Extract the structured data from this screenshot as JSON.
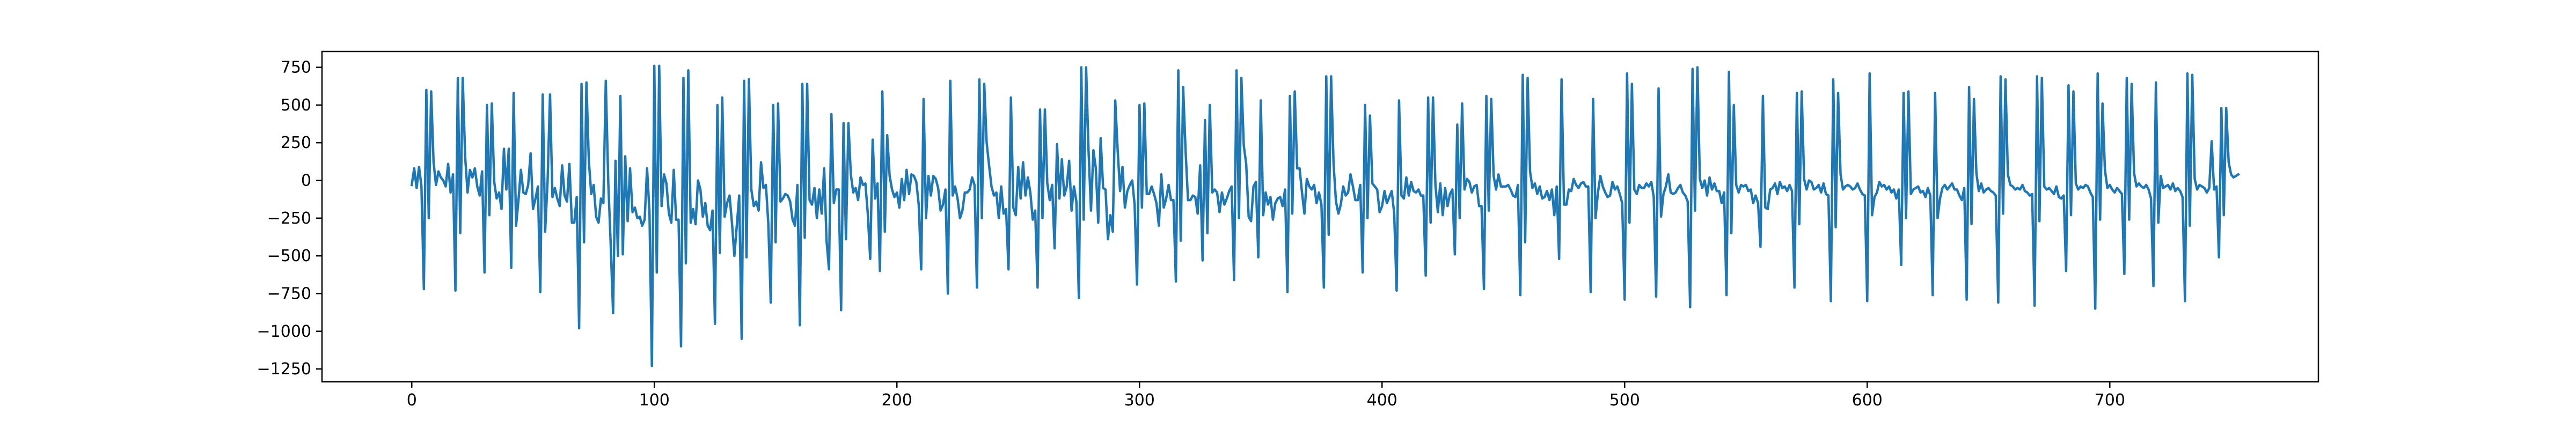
{
  "chart_data": {
    "type": "line",
    "title": "",
    "xlabel": "",
    "ylabel": "",
    "xlim": [
      -37,
      786
    ],
    "ylim": [
      -1335,
      855
    ],
    "x_ticks": [
      0,
      100,
      200,
      300,
      400,
      500,
      600,
      700
    ],
    "y_ticks": [
      750,
      500,
      250,
      0,
      -250,
      -500,
      -750,
      -1000,
      -1250
    ],
    "x_tick_labels": [
      "0",
      "100",
      "200",
      "300",
      "400",
      "500",
      "600",
      "700"
    ],
    "y_tick_labels": [
      "750",
      "500",
      "250",
      "0",
      "−250",
      "−500",
      "−750",
      "−1000",
      "−1250"
    ],
    "grid": false,
    "legend": false,
    "series": [
      {
        "color": "#1f77b4",
        "x_start": 0,
        "x_step": 1,
        "values": [
          -30,
          80,
          -50,
          90,
          -40,
          -720,
          600,
          -250,
          590,
          120,
          -30,
          60,
          20,
          0,
          -40,
          110,
          -80,
          40,
          -730,
          680,
          -350,
          680,
          160,
          -80,
          70,
          20,
          80,
          -40,
          -100,
          60,
          -610,
          500,
          -230,
          510,
          -10,
          -120,
          -80,
          -190,
          210,
          -60,
          210,
          -580,
          580,
          -300,
          -130,
          70,
          -80,
          -90,
          -30,
          180,
          -190,
          -120,
          -40,
          -740,
          570,
          -340,
          0,
          570,
          -110,
          -50,
          -120,
          -170,
          100,
          -100,
          -140,
          110,
          -280,
          -280,
          -110,
          -980,
          640,
          -410,
          650,
          130,
          -90,
          -30,
          -240,
          -280,
          -120,
          -150,
          660,
          -10,
          -420,
          -880,
          130,
          -500,
          560,
          -490,
          160,
          -270,
          80,
          -210,
          -180,
          -250,
          -240,
          -300,
          -260,
          80,
          -210,
          -1230,
          760,
          -610,
          760,
          -170,
          40,
          -20,
          -220,
          -280,
          70,
          -260,
          -260,
          -1100,
          680,
          -550,
          730,
          -280,
          -190,
          -290,
          0,
          -60,
          -240,
          -150,
          -300,
          -330,
          -200,
          -950,
          500,
          -480,
          550,
          -240,
          -150,
          -100,
          -280,
          -500,
          -300,
          -100,
          -1050,
          660,
          -510,
          670,
          -60,
          -170,
          -140,
          -200,
          120,
          -50,
          -30,
          -290,
          -810,
          500,
          -410,
          510,
          -140,
          -120,
          -90,
          -100,
          -140,
          -260,
          -300,
          -30,
          -960,
          640,
          -380,
          640,
          -130,
          -160,
          -50,
          -250,
          -60,
          -220,
          80,
          -400,
          -590,
          440,
          -150,
          -60,
          -60,
          -860,
          380,
          -390,
          380,
          40,
          -80,
          -50,
          -130,
          20,
          -30,
          -20,
          -220,
          -520,
          270,
          -120,
          -20,
          -600,
          590,
          -340,
          300,
          30,
          -60,
          -110,
          -80,
          -180,
          10,
          -130,
          70,
          -90,
          40,
          30,
          -10,
          -160,
          -590,
          540,
          -250,
          30,
          -100,
          30,
          10,
          -50,
          -200,
          -160,
          -60,
          -750,
          660,
          -100,
          -40,
          -120,
          -250,
          -200,
          -80,
          -80,
          -60,
          20,
          -30,
          -710,
          670,
          -250,
          640,
          250,
          100,
          -40,
          -100,
          -80,
          -250,
          -40,
          -220,
          -190,
          -590,
          550,
          -180,
          -230,
          90,
          -120,
          120,
          -100,
          20,
          -80,
          -260,
          -200,
          -710,
          470,
          -250,
          470,
          -20,
          -130,
          -30,
          -450,
          240,
          -120,
          140,
          -100,
          -40,
          130,
          -200,
          -40,
          -140,
          -780,
          750,
          -260,
          750,
          200,
          -200,
          200,
          80,
          -280,
          280,
          -50,
          -60,
          -390,
          -230,
          -340,
          530,
          200,
          -70,
          90,
          -180,
          -70,
          -30,
          0,
          -160,
          -690,
          500,
          -180,
          510,
          -90,
          -90,
          -40,
          -90,
          -150,
          -300,
          40,
          -180,
          -120,
          -30,
          -130,
          -130,
          -670,
          730,
          -400,
          620,
          200,
          -130,
          -130,
          -100,
          -110,
          -220,
          100,
          -530,
          400,
          -350,
          500,
          -80,
          -60,
          -80,
          -210,
          -80,
          -160,
          -120,
          -70,
          -40,
          -660,
          730,
          -250,
          680,
          230,
          110,
          -240,
          -270,
          -40,
          -10,
          -510,
          530,
          -230,
          -80,
          -160,
          -110,
          -260,
          -150,
          -120,
          -110,
          -170,
          -60,
          -740,
          560,
          -220,
          590,
          80,
          80,
          -80,
          -220,
          10,
          -40,
          -60,
          -30,
          -150,
          -80,
          -160,
          -710,
          690,
          -360,
          690,
          110,
          -140,
          -220,
          -160,
          -40,
          -100,
          -80,
          40,
          -40,
          -130,
          -130,
          -30,
          -610,
          500,
          -250,
          430,
          -20,
          -40,
          -60,
          -210,
          -170,
          -70,
          -150,
          -110,
          -70,
          -220,
          -730,
          530,
          -100,
          -120,
          20,
          -100,
          -10,
          -70,
          -80,
          -60,
          -100,
          -100,
          -630,
          550,
          -280,
          550,
          -30,
          -210,
          -20,
          -230,
          -50,
          -170,
          -90,
          -60,
          -490,
          370,
          -250,
          510,
          -60,
          10,
          -10,
          -80,
          -40,
          -30,
          -170,
          -170,
          -720,
          560,
          -200,
          540,
          30,
          -60,
          40,
          -40,
          -40,
          -40,
          -30,
          -60,
          -100,
          -110,
          -30,
          -760,
          700,
          -410,
          680,
          60,
          -50,
          -20,
          -90,
          -40,
          -120,
          -110,
          -70,
          -130,
          -60,
          -230,
          -40,
          -520,
          670,
          -160,
          -160,
          -60,
          -70,
          10,
          -30,
          -50,
          -20,
          -10,
          -40,
          -40,
          -740,
          540,
          -250,
          -80,
          30,
          -40,
          -80,
          -110,
          -100,
          -10,
          -60,
          -40,
          -90,
          -150,
          -790,
          710,
          -280,
          640,
          -60,
          -90,
          -30,
          -50,
          -50,
          -20,
          -40,
          -10,
          -110,
          -770,
          610,
          -240,
          -90,
          -40,
          40,
          -80,
          -90,
          -80,
          -50,
          -30,
          -80,
          -100,
          -140,
          -840,
          740,
          -200,
          750,
          10,
          -50,
          0,
          -100,
          20,
          -60,
          -20,
          -70,
          -70,
          -150,
          -80,
          -760,
          720,
          -350,
          500,
          -30,
          -80,
          -30,
          -40,
          -30,
          -70,
          -60,
          -150,
          -100,
          -150,
          -440,
          560,
          -180,
          -190,
          -60,
          -50,
          -20,
          -90,
          -10,
          -50,
          -40,
          -70,
          -30,
          -70,
          -710,
          580,
          -290,
          590,
          10,
          -60,
          0,
          -10,
          -60,
          -50,
          -30,
          -80,
          -20,
          -90,
          -100,
          -800,
          670,
          -310,
          580,
          40,
          -60,
          -40,
          -30,
          -40,
          -60,
          -50,
          -20,
          -60,
          -90,
          -100,
          -800,
          710,
          -230,
          -110,
          -80,
          -10,
          -40,
          -30,
          -60,
          -40,
          -80,
          -60,
          -120,
          -60,
          -560,
          580,
          -250,
          590,
          -90,
          -60,
          -50,
          -40,
          -80,
          -70,
          -110,
          -50,
          -100,
          -760,
          580,
          -250,
          -120,
          -50,
          -30,
          -60,
          -40,
          -20,
          -60,
          -60,
          -100,
          -130,
          -50,
          -790,
          620,
          -290,
          540,
          50,
          -70,
          -20,
          -80,
          -60,
          -50,
          -70,
          -80,
          -100,
          -810,
          690,
          -220,
          670,
          40,
          -30,
          -40,
          -60,
          -50,
          -60,
          -30,
          -70,
          -80,
          -100,
          -90,
          -830,
          690,
          -270,
          680,
          -40,
          -60,
          -50,
          -70,
          -90,
          -40,
          -110,
          -120,
          -100,
          -600,
          630,
          -230,
          590,
          -20,
          -60,
          -40,
          -50,
          -30,
          -40,
          -80,
          -110,
          -850,
          710,
          -260,
          510,
          70,
          -50,
          -30,
          -60,
          -80,
          -50,
          -70,
          -90,
          -620,
          680,
          -260,
          640,
          50,
          -40,
          -20,
          -40,
          -50,
          -30,
          -60,
          -120,
          -700,
          650,
          -280,
          30,
          -50,
          -40,
          -30,
          -60,
          -20,
          -70,
          -50,
          -70,
          -110,
          -800,
          710,
          -300,
          700,
          10,
          -60,
          -30,
          -40,
          -50,
          -80,
          -50,
          260,
          -60,
          -40,
          -510,
          480,
          -230,
          480,
          120,
          40,
          20,
          30,
          40
        ]
      }
    ]
  }
}
